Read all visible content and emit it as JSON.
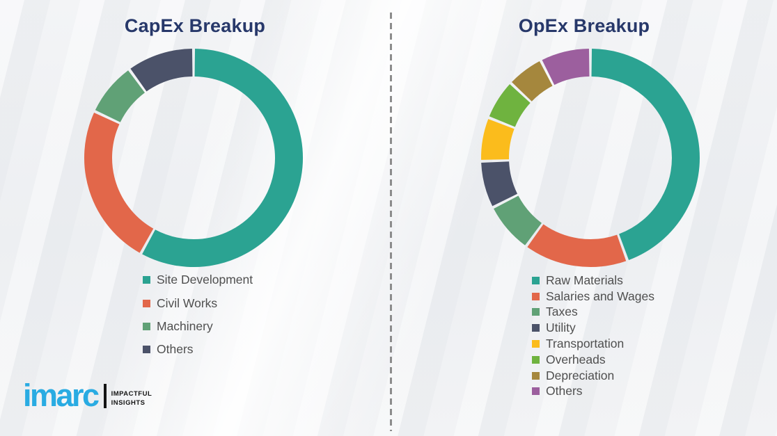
{
  "theme": {
    "background_color": "#eef0f2",
    "divider_color": "#8c8c8c",
    "title_color": "#27386a",
    "legend_text_color": "#4f4f4f",
    "logo_color": "#29abe2",
    "tagline_color": "#141414"
  },
  "branding": {
    "logo_text": "imarc",
    "tagline_line1": "IMPACTFUL",
    "tagline_line2": "INSIGHTS"
  },
  "chart_data": [
    {
      "type": "pie",
      "variant": "donut",
      "title": "CapEx Breakup",
      "direction": "clockwise",
      "start_angle_deg": 0,
      "legend_position": "below-chart",
      "segments": [
        {
          "label": "Site Development",
          "percent": 58,
          "color": "#2ba392"
        },
        {
          "label": "Civil Works",
          "percent": 24,
          "color": "#e2674a"
        },
        {
          "label": "Machinery",
          "percent": 8,
          "color": "#60a176"
        },
        {
          "label": "Others",
          "percent": 10,
          "color": "#4b5269"
        }
      ]
    },
    {
      "type": "pie",
      "variant": "donut",
      "title": "OpEx Breakup",
      "direction": "clockwise",
      "start_angle_deg": 0,
      "legend_position": "below-chart",
      "segments": [
        {
          "label": "Raw Materials",
          "percent": 44.5,
          "color": "#2ba392"
        },
        {
          "label": "Salaries and Wages",
          "percent": 15.5,
          "color": "#e2674a"
        },
        {
          "label": "Taxes",
          "percent": 7.5,
          "color": "#60a176"
        },
        {
          "label": "Utility",
          "percent": 7,
          "color": "#4b5269"
        },
        {
          "label": "Transportation",
          "percent": 6.5,
          "color": "#fbbc1c"
        },
        {
          "label": "Overheads",
          "percent": 6,
          "color": "#6fb33f"
        },
        {
          "label": "Depreciation",
          "percent": 5.5,
          "color": "#a5873d"
        },
        {
          "label": "Others",
          "percent": 7.5,
          "color": "#9c5f9e"
        }
      ]
    }
  ]
}
